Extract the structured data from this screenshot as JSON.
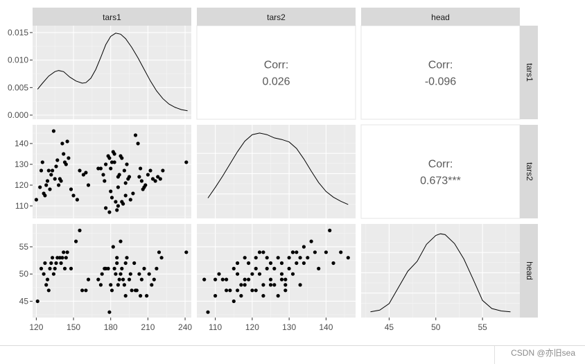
{
  "chart_data": {
    "type": "scatter",
    "title": "",
    "variables": [
      "tars1",
      "tars2",
      "head"
    ],
    "panels": {
      "tars1_density": {
        "type": "line",
        "variable": "tars1",
        "ylim": [
          0,
          0.016
        ],
        "y_ticks": [
          "0.000",
          "0.005",
          "0.010",
          "0.015"
        ],
        "x": [
          121,
          125,
          130,
          135,
          138,
          142,
          147,
          152,
          157,
          160,
          164,
          168,
          172,
          176,
          180,
          184,
          188,
          192,
          197,
          202,
          207,
          212,
          217,
          222,
          227,
          232,
          237,
          242
        ],
        "y": [
          0.0047,
          0.0058,
          0.0071,
          0.0079,
          0.0081,
          0.0079,
          0.0069,
          0.0062,
          0.0058,
          0.0059,
          0.0067,
          0.0083,
          0.0105,
          0.0128,
          0.0143,
          0.0149,
          0.0147,
          0.0139,
          0.0123,
          0.0104,
          0.0083,
          0.0062,
          0.0044,
          0.003,
          0.002,
          0.0014,
          0.001,
          0.0008
        ]
      },
      "tars2_density": {
        "type": "line",
        "variable": "tars2",
        "x": [
          108,
          110,
          112,
          114,
          116,
          118,
          120,
          122,
          124,
          126,
          128,
          130,
          132,
          134,
          136,
          138,
          140,
          142,
          144,
          146
        ],
        "y": [
          0.2,
          0.33,
          0.47,
          0.62,
          0.77,
          0.9,
          0.98,
          1.0,
          0.98,
          0.94,
          0.92,
          0.89,
          0.81,
          0.68,
          0.53,
          0.39,
          0.28,
          0.21,
          0.16,
          0.12
        ]
      },
      "head_density": {
        "type": "line",
        "variable": "head",
        "x": [
          43,
          44,
          45,
          46,
          47,
          48,
          49,
          50,
          50.5,
          51,
          52,
          53,
          54,
          55,
          56,
          57,
          58
        ],
        "y": [
          0.02,
          0.04,
          0.12,
          0.32,
          0.52,
          0.64,
          0.85,
          0.96,
          0.98,
          0.97,
          0.86,
          0.67,
          0.42,
          0.16,
          0.06,
          0.03,
          0.02
        ]
      },
      "tars1_tars2": {
        "type": "scatter",
        "x": [
          120,
          123,
          124,
          125,
          126,
          127,
          128,
          129,
          130,
          131,
          132,
          133,
          134,
          135,
          136,
          137,
          138,
          139,
          140,
          141,
          142,
          143,
          144,
          145,
          146,
          148,
          150,
          153,
          155,
          158,
          160,
          162,
          170,
          172,
          174,
          175,
          176,
          178,
          179,
          180,
          181,
          182,
          183,
          184,
          185,
          186,
          187,
          188,
          189,
          190,
          191,
          192,
          193,
          194,
          195,
          196,
          198,
          200,
          202,
          203,
          204,
          205,
          206,
          207,
          208,
          210,
          212,
          214,
          216,
          218,
          220,
          222,
          241,
          176,
          179,
          183,
          186,
          189,
          192,
          186,
          181,
          180
        ],
        "y": [
          113,
          119,
          127,
          131,
          116,
          115,
          120,
          122,
          127,
          118,
          125,
          127,
          146,
          123,
          129,
          132,
          120,
          123,
          122,
          140,
          135,
          131,
          130,
          141,
          133,
          118,
          115,
          113,
          127,
          125,
          126,
          120,
          128,
          128,
          125,
          122,
          130,
          134,
          133,
          117,
          131,
          136,
          135,
          112,
          108,
          110,
          125,
          134,
          133,
          111,
          127,
          121,
          130,
          123,
          124,
          113,
          116,
          144,
          140,
          124,
          128,
          122,
          118,
          119,
          120,
          125,
          127,
          123,
          122,
          124,
          123,
          127,
          131,
          109,
          107,
          131,
          124,
          112,
          115,
          119,
          114,
          128
        ]
      },
      "tars1_head": {
        "type": "scatter",
        "x": [
          121,
          124,
          126,
          127,
          128,
          129,
          130,
          131,
          132,
          133,
          134,
          135,
          136,
          137,
          139,
          140,
          141,
          142,
          143,
          144,
          145,
          148,
          152,
          155,
          157,
          160,
          162,
          170,
          172,
          173,
          175,
          176,
          178,
          179,
          180,
          181,
          182,
          183,
          184,
          185,
          186,
          187,
          188,
          189,
          190,
          191,
          192,
          193,
          195,
          197,
          199,
          201,
          203,
          205,
          207,
          209,
          211,
          213,
          215,
          217,
          219,
          221,
          241,
          185,
          188,
          192,
          196,
          200,
          204
        ],
        "y": [
          45,
          51,
          50,
          52,
          48,
          49,
          47,
          51,
          52,
          53,
          50,
          51,
          52,
          53,
          53,
          52,
          53,
          54,
          51,
          53,
          54,
          51,
          56,
          58,
          47,
          47,
          49,
          49,
          48,
          50,
          51,
          51,
          51,
          43,
          48,
          47,
          55,
          51,
          50,
          52,
          48,
          49,
          50,
          51,
          49,
          48,
          46,
          53,
          49,
          47,
          52,
          47,
          50,
          49,
          51,
          46,
          50,
          48,
          49,
          51,
          54,
          53,
          54,
          53,
          56,
          52,
          50,
          47,
          46
        ]
      },
      "tars2_head": {
        "type": "scatter",
        "x": [
          107,
          108,
          110,
          110,
          111,
          112,
          113,
          114,
          115,
          115,
          116,
          116,
          117,
          117,
          118,
          118,
          119,
          119,
          120,
          120,
          121,
          121,
          122,
          122,
          123,
          123,
          124,
          124,
          125,
          125,
          126,
          126,
          127,
          127,
          128,
          128,
          129,
          129,
          130,
          130,
          131,
          131,
          132,
          132,
          133,
          133,
          134,
          134,
          135,
          136,
          137,
          138,
          140,
          141,
          142,
          144,
          146,
          113,
          116,
          118,
          121,
          123,
          125,
          128,
          129,
          131
        ],
        "y": [
          49,
          43,
          49,
          46,
          50,
          49,
          49,
          47,
          51,
          45,
          52,
          47,
          48,
          46,
          49,
          53,
          49,
          52,
          50,
          47,
          51,
          47,
          54,
          50,
          46,
          48,
          51,
          53,
          49,
          48,
          51,
          48,
          53,
          46,
          52,
          50,
          49,
          48,
          51,
          53,
          50,
          54,
          54,
          52,
          53,
          48,
          55,
          52,
          53,
          56,
          54,
          51,
          54,
          58,
          52,
          54,
          53,
          47,
          50,
          48,
          53,
          54,
          52,
          49,
          47,
          54
        ]
      },
      "corr_tars1_tars2": {
        "label": "Corr:",
        "value": "0.026"
      },
      "corr_tars1_head": {
        "label": "Corr:",
        "value": "-0.096"
      },
      "corr_tars2_head": {
        "label": "Corr:",
        "value": "0.673***"
      }
    },
    "axes": {
      "tars1": {
        "range": [
          117,
          245
        ],
        "ticks": [
          120,
          150,
          180,
          210,
          240
        ]
      },
      "tars2": {
        "range": [
          105,
          148
        ],
        "ticks": [
          110,
          120,
          130,
          140
        ],
        "row_range": [
          104,
          149
        ]
      },
      "head": {
        "range": [
          42,
          59
        ],
        "ticks": [
          45,
          50,
          55
        ],
        "row_range": [
          42,
          59.2
        ]
      }
    }
  },
  "watermark": "CSDN @亦旧sea"
}
